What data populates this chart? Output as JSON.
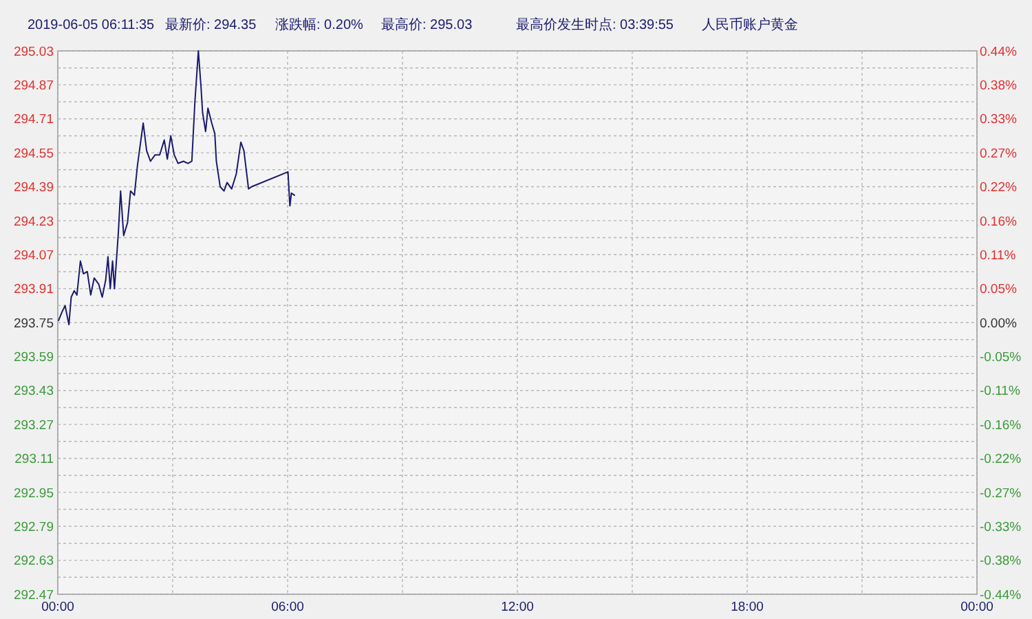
{
  "chart_data": {
    "type": "line",
    "title": "2019-06-05 06:11:35",
    "annotations": [
      "最新价: 294.35",
      "涨跌幅: 0.20%",
      "最高价: 295.03",
      "最高价发生时点:  03:39:55",
      "人民币账户黄金"
    ],
    "x": [
      0.02,
      0.11,
      0.19,
      0.29,
      0.35,
      0.43,
      0.5,
      0.59,
      0.67,
      0.77,
      0.86,
      0.95,
      1.07,
      1.16,
      1.25,
      1.31,
      1.37,
      1.43,
      1.48,
      1.58,
      1.64,
      1.72,
      1.82,
      1.9,
      2.0,
      2.08,
      2.14,
      2.23,
      2.32,
      2.42,
      2.54,
      2.66,
      2.78,
      2.86,
      2.95,
      3.04,
      3.14,
      3.28,
      3.4,
      3.5,
      3.58,
      3.67,
      3.74,
      3.78,
      3.86,
      3.92,
      4.02,
      4.1,
      4.14,
      4.24,
      4.34,
      4.42,
      4.54,
      4.66,
      4.78,
      4.86,
      4.98,
      5.06,
      6.01,
      6.06,
      6.1,
      6.18
    ],
    "series": [
      {
        "color": "#1a1a6e",
        "values": [
          293.76,
          293.8,
          293.83,
          293.74,
          293.87,
          293.9,
          293.88,
          294.04,
          293.98,
          293.99,
          293.88,
          293.96,
          293.93,
          293.87,
          293.95,
          294.06,
          293.91,
          294.04,
          293.91,
          294.17,
          294.37,
          294.16,
          294.22,
          294.37,
          294.35,
          294.49,
          294.57,
          294.69,
          294.56,
          294.51,
          294.54,
          294.54,
          294.61,
          294.52,
          294.63,
          294.54,
          294.5,
          294.51,
          294.5,
          294.51,
          294.79,
          295.03,
          294.86,
          294.74,
          294.65,
          294.76,
          294.69,
          294.64,
          294.51,
          294.39,
          294.37,
          294.41,
          294.38,
          294.45,
          294.6,
          294.56,
          294.38,
          294.39,
          294.46,
          294.3,
          294.36,
          294.35
        ]
      }
    ],
    "xlim": [
      0,
      24
    ],
    "xticks": [
      {
        "value": 0,
        "label": "00:00"
      },
      {
        "value": 3,
        "label": null
      },
      {
        "value": 6,
        "label": "06:00"
      },
      {
        "value": 9,
        "label": null
      },
      {
        "value": 12,
        "label": "12:00"
      },
      {
        "value": 15,
        "label": null
      },
      {
        "value": 18,
        "label": "18:00"
      },
      {
        "value": 21,
        "label": null
      },
      {
        "value": 24,
        "label": "00:00"
      }
    ],
    "ylim": [
      292.47,
      295.03
    ],
    "yticks": [
      292.47,
      {
        "value": 292.55,
        "label": null
      },
      292.63,
      {
        "value": 292.71,
        "label": null
      },
      292.79,
      {
        "value": 292.87,
        "label": null
      },
      292.95,
      {
        "value": 293.03,
        "label": null
      },
      293.11,
      {
        "value": 293.19,
        "label": null
      },
      293.27,
      {
        "value": 293.35,
        "label": null
      },
      293.43,
      {
        "value": 293.51,
        "label": null
      },
      293.59,
      {
        "value": 293.67,
        "label": null
      },
      293.75,
      {
        "value": 293.83,
        "label": null
      },
      293.91,
      {
        "value": 293.99,
        "label": null
      },
      294.07,
      {
        "value": 294.15,
        "label": null
      },
      294.23,
      {
        "value": 294.31,
        "label": null
      },
      294.39,
      {
        "value": 294.47,
        "label": null
      },
      294.55,
      {
        "value": 294.63,
        "label": null
      },
      294.71,
      {
        "value": 294.79,
        "label": null
      },
      294.87,
      {
        "value": 294.95,
        "label": null
      },
      295.03
    ],
    "y2lim": [
      -0.44,
      0.44
    ],
    "y2ticks": [
      {
        "value": -0.44,
        "label": "-0.44%"
      },
      {
        "value": -0.385,
        "label": "-0.38%"
      },
      {
        "value": -0.33,
        "label": "-0.33%"
      },
      {
        "value": -0.275,
        "label": "-0.27%"
      },
      {
        "value": -0.22,
        "label": "-0.22%"
      },
      {
        "value": -0.165,
        "label": "-0.16%"
      },
      {
        "value": -0.11,
        "label": "-0.11%"
      },
      {
        "value": -0.055,
        "label": "-0.05%"
      },
      {
        "value": 0,
        "label": "0.00%"
      },
      {
        "value": 0.055,
        "label": "0.05%"
      },
      {
        "value": 0.11,
        "label": "0.11%"
      },
      {
        "value": 0.165,
        "label": "0.16%"
      },
      {
        "value": 0.22,
        "label": "0.22%"
      },
      {
        "value": 0.275,
        "label": "0.27%"
      },
      {
        "value": 0.33,
        "label": "0.33%"
      },
      {
        "value": 0.385,
        "label": "0.38%"
      },
      {
        "value": 0.44,
        "label": "0.44%"
      }
    ],
    "grid": true,
    "line_style": "solid"
  }
}
